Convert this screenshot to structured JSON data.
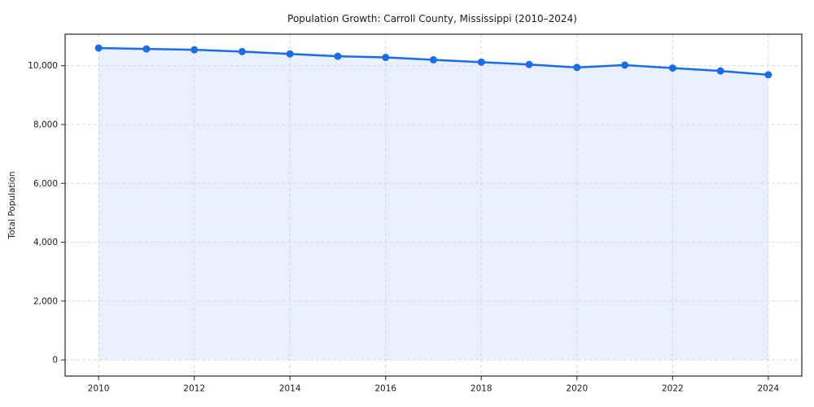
{
  "chart_data": {
    "type": "line",
    "title": "Population Growth: Carroll County, Mississippi (2010–2024)",
    "xlabel": "",
    "ylabel": "Total Population",
    "x": [
      2010,
      2011,
      2012,
      2013,
      2014,
      2015,
      2016,
      2017,
      2018,
      2019,
      2020,
      2021,
      2022,
      2023,
      2024
    ],
    "series": [
      {
        "name": "Total Population",
        "values": [
          10600,
          10570,
          10540,
          10480,
          10400,
          10320,
          10280,
          10200,
          10120,
          10040,
          9940,
          10020,
          9920,
          9820,
          9690
        ]
      }
    ],
    "x_ticks": [
      2010,
      2012,
      2014,
      2016,
      2018,
      2020,
      2022,
      2024
    ],
    "y_ticks": [
      0,
      2000,
      4000,
      6000,
      8000,
      10000
    ],
    "y_tick_labels": [
      "0",
      "2,000",
      "4,000",
      "6,000",
      "8,000",
      "10,000"
    ],
    "xlim": [
      2009.3,
      2024.7
    ],
    "ylim": [
      -550,
      11070
    ],
    "grid": true,
    "grid_style": "dashed",
    "legend": false,
    "marker": "circle",
    "line_color": "#1b6ce8",
    "fill_color": "#e9effc",
    "grid_color": "#d5d5d5",
    "axis_color": "#262626"
  }
}
